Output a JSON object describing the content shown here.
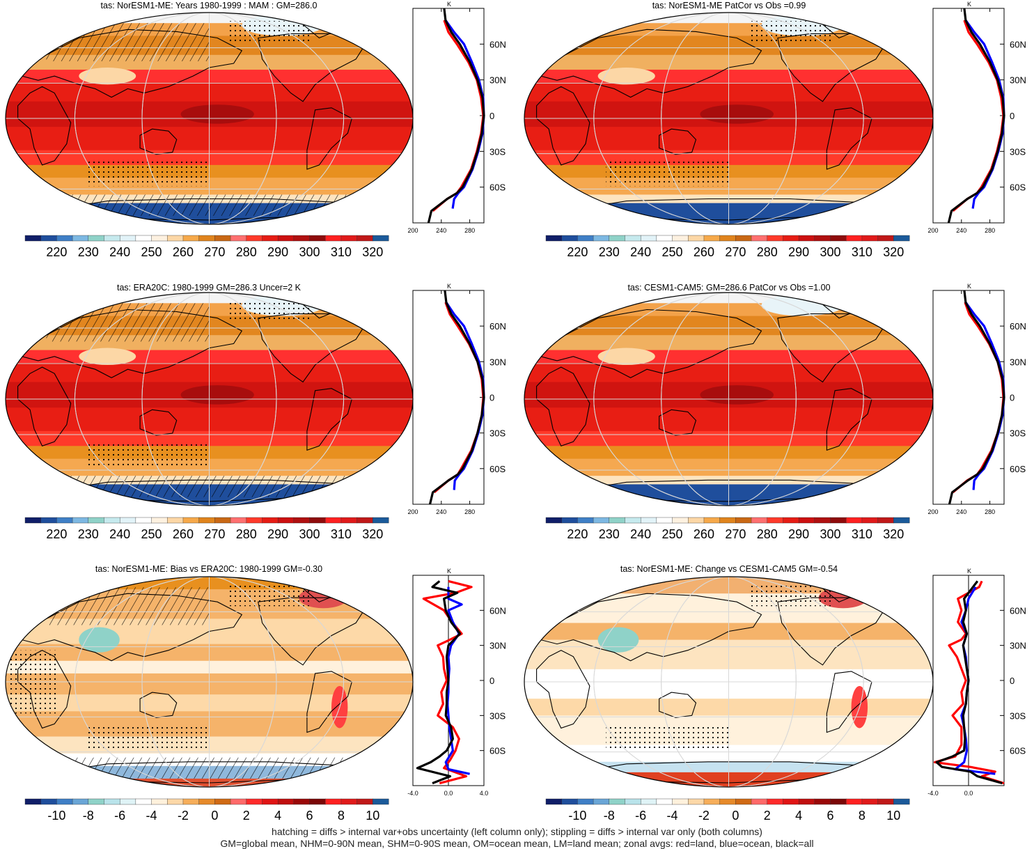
{
  "footer": {
    "line1": "hatching = diffs > internal var+obs uncertainty (left column only); stippling = diffs > internal var only (both columns)",
    "line2": "GM=global mean, NHM=0-90N mean, SHM=0-90S mean, OM=ocean mean, LM=land mean; zonal avgs: red=land, blue=ocean, black=all"
  },
  "colors": {
    "land": "#ff0000",
    "ocean": "#0000ff",
    "all": "#000000"
  },
  "profile_lat_labels": [
    "60N",
    "30N",
    "0",
    "30S",
    "60S"
  ],
  "profile_lat_values": [
    60,
    30,
    0,
    -30,
    -60
  ],
  "profile_units_label": "K",
  "colorbars": {
    "abs": {
      "labels": [
        "220",
        "230",
        "240",
        "250",
        "260",
        "270",
        "280",
        "290",
        "300",
        "310",
        "320"
      ],
      "colors": [
        "#101e68",
        "#1f4e9c",
        "#3f7fc6",
        "#7db8e2",
        "#8fd2c8",
        "#c6eaee",
        "#e2f3f8",
        "#ffffff",
        "#fdf1e0",
        "#fcd7a6",
        "#f6a94a",
        "#e0841d",
        "#c96814",
        "#ff7070",
        "#ff3a2a",
        "#e61c14",
        "#cc1010",
        "#b01010",
        "#8e0b0b",
        "#ff2020",
        "#e01a1a",
        "#c01818",
        "#1b5a9a"
      ]
    },
    "diff": {
      "labels": [
        "-10",
        "-8",
        "-6",
        "-4",
        "-2",
        "0",
        "2",
        "4",
        "6",
        "8",
        "10"
      ],
      "colors": [
        "#101e68",
        "#1f4e9c",
        "#3f7fc6",
        "#6aa6d6",
        "#8fd2c8",
        "#b9e3ea",
        "#dff3f6",
        "#ffffff",
        "#fff1dc",
        "#fcd8a8",
        "#f6ae5a",
        "#e68a2a",
        "#d06a14",
        "#ff6a6a",
        "#ff2a2a",
        "#e01414",
        "#c00e0e",
        "#9a0808",
        "#7a0606",
        "#ff2020",
        "#e01a1a",
        "#c01818",
        "#1b5a9a"
      ]
    }
  },
  "chart_data": [
    {
      "type": "map",
      "title": "tas: NorESM1-ME: Years 1980-1999 : MAM : GM=286.0",
      "colorbar": "abs",
      "scale": "abs",
      "hatch": true,
      "stipple": true,
      "profile": {
        "type": "line",
        "xlabel": "K",
        "xticks": [
          "200",
          "240",
          "280"
        ],
        "xlim": [
          200,
          300
        ],
        "ylim": [
          -90,
          90
        ],
        "series": [
          {
            "name": "land",
            "lat": [
              -80,
              -70,
              -65,
              -60,
              -45,
              -30,
              -15,
              0,
              15,
              30,
              45,
              60,
              70,
              80
            ],
            "values": [
              228,
              248,
              262,
              268,
              282,
              290,
              296,
              299,
              296,
              290,
              278,
              262,
              250,
              244
            ]
          },
          {
            "name": "ocean",
            "lat": [
              -78,
              -70,
              -65,
              -60,
              -45,
              -30,
              -15,
              0,
              15,
              30,
              45,
              60,
              70,
              80
            ],
            "values": [
              256,
              258,
              264,
              272,
              284,
              292,
              298,
              301,
              299,
              293,
              283,
              272,
              258,
              246
            ]
          },
          {
            "name": "all",
            "lat": [
              -90,
              -80,
              -70,
              -65,
              -60,
              -45,
              -30,
              -15,
              0,
              15,
              30,
              45,
              60,
              70,
              80,
              90
            ],
            "values": [
              222,
              226,
              248,
              262,
              270,
              283,
              291,
              297,
              300,
              298,
              291,
              280,
              266,
              254,
              246,
              244
            ]
          }
        ]
      }
    },
    {
      "type": "map",
      "title": "tas: NorESM1-ME PatCor vs Obs =0.99",
      "colorbar": "abs",
      "scale": "abs",
      "hatch": false,
      "stipple": true,
      "profile": {
        "type": "line",
        "xlabel": "K",
        "xticks": [
          "200",
          "240",
          "280"
        ],
        "xlim": [
          200,
          300
        ],
        "ylim": [
          -90,
          90
        ],
        "series": [
          {
            "name": "land",
            "lat": [
              -80,
              -70,
              -65,
              -60,
              -45,
              -30,
              -15,
              0,
              15,
              30,
              45,
              60,
              70,
              80
            ],
            "values": [
              228,
              248,
              262,
              268,
              282,
              290,
              296,
              299,
              296,
              290,
              278,
              262,
              250,
              244
            ]
          },
          {
            "name": "ocean",
            "lat": [
              -78,
              -70,
              -65,
              -60,
              -45,
              -30,
              -15,
              0,
              15,
              30,
              45,
              60,
              70,
              80
            ],
            "values": [
              256,
              258,
              264,
              272,
              284,
              292,
              298,
              301,
              299,
              293,
              283,
              272,
              258,
              246
            ]
          },
          {
            "name": "all",
            "lat": [
              -90,
              -80,
              -70,
              -65,
              -60,
              -45,
              -30,
              -15,
              0,
              15,
              30,
              45,
              60,
              70,
              80,
              90
            ],
            "values": [
              222,
              226,
              248,
              262,
              270,
              283,
              291,
              297,
              300,
              298,
              291,
              280,
              266,
              254,
              246,
              244
            ]
          }
        ]
      }
    },
    {
      "type": "map",
      "title": "tas: ERA20C: 1980-1999 GM=286.3 Uncer=2 K",
      "colorbar": "abs",
      "scale": "abs",
      "hatch": true,
      "stipple": true,
      "profile": {
        "type": "line",
        "xlabel": "K",
        "xticks": [
          "200",
          "240",
          "280"
        ],
        "xlim": [
          200,
          300
        ],
        "ylim": [
          -90,
          90
        ],
        "series": [
          {
            "name": "land",
            "lat": [
              -80,
              -70,
              -65,
              -60,
              -45,
              -30,
              -15,
              0,
              15,
              30,
              45,
              60,
              70,
              80
            ],
            "values": [
              230,
              250,
              263,
              268,
              282,
              291,
              297,
              299,
              297,
              291,
              279,
              263,
              252,
              246
            ]
          },
          {
            "name": "ocean",
            "lat": [
              -78,
              -70,
              -65,
              -60,
              -45,
              -30,
              -15,
              0,
              15,
              30,
              45,
              60,
              70,
              80
            ],
            "values": [
              258,
              259,
              265,
              272,
              284,
              292,
              298,
              301,
              299,
              293,
              283,
              272,
              258,
              247
            ]
          },
          {
            "name": "all",
            "lat": [
              -90,
              -80,
              -70,
              -65,
              -60,
              -45,
              -30,
              -15,
              0,
              15,
              30,
              45,
              60,
              70,
              80,
              90
            ],
            "values": [
              224,
              228,
              250,
              263,
              270,
              283,
              291,
              297,
              300,
              298,
              291,
              280,
              266,
              254,
              247,
              245
            ]
          }
        ]
      }
    },
    {
      "type": "map",
      "title": "tas: CESM1-CAM5: GM=286.6 PatCor vs Obs =1.00",
      "colorbar": "abs",
      "scale": "abs",
      "hatch": false,
      "stipple": false,
      "profile": {
        "type": "line",
        "xlabel": "K",
        "xticks": [
          "200",
          "240",
          "280"
        ],
        "xlim": [
          200,
          300
        ],
        "ylim": [
          -90,
          90
        ],
        "series": [
          {
            "name": "land",
            "lat": [
              -80,
              -70,
              -65,
              -60,
              -45,
              -30,
              -15,
              0,
              15,
              30,
              45,
              60,
              70,
              80
            ],
            "values": [
              228,
              248,
              262,
              268,
              282,
              291,
              297,
              299,
              297,
              291,
              279,
              263,
              251,
              245
            ]
          },
          {
            "name": "ocean",
            "lat": [
              -78,
              -70,
              -65,
              -60,
              -45,
              -30,
              -15,
              0,
              15,
              30,
              45,
              60,
              70,
              80
            ],
            "values": [
              257,
              258,
              264,
              272,
              284,
              292,
              298,
              301,
              299,
              293,
              283,
              272,
              258,
              246
            ]
          },
          {
            "name": "all",
            "lat": [
              -90,
              -80,
              -70,
              -65,
              -60,
              -45,
              -30,
              -15,
              0,
              15,
              30,
              45,
              60,
              70,
              80,
              90
            ],
            "values": [
              223,
              227,
              249,
              262,
              270,
              283,
              291,
              297,
              300,
              298,
              291,
              280,
              266,
              254,
              246,
              244
            ]
          }
        ]
      }
    },
    {
      "type": "map",
      "title": "tas: NorESM1-ME: Bias vs ERA20C: 1980-1999 GM=-0.30",
      "colorbar": "diff",
      "scale": "diff",
      "hatch": true,
      "stipple": true,
      "profile": {
        "type": "line",
        "xlabel": "K",
        "xticks": [
          "-4.0",
          "0.0",
          "4.0"
        ],
        "xlim": [
          -4,
          4
        ],
        "ylim": [
          -90,
          90
        ],
        "series": [
          {
            "name": "land",
            "lat": [
              -88,
              -82,
              -75,
              -68,
              -60,
              -50,
              -40,
              -30,
              -20,
              -10,
              0,
              10,
              20,
              30,
              35,
              40,
              50,
              60,
              70,
              75,
              80,
              85
            ],
            "values": [
              -1.0,
              2.0,
              -0.5,
              0.2,
              0.8,
              1.2,
              0.5,
              -1.2,
              -0.6,
              -0.8,
              -0.2,
              -0.5,
              -0.6,
              -1.2,
              0.2,
              1.5,
              0.4,
              -0.5,
              -2.8,
              0.8,
              2.6,
              0.0
            ]
          },
          {
            "name": "ocean",
            "lat": [
              -80,
              -76,
              -70,
              -60,
              -50,
              -40,
              -30,
              -20,
              -10,
              0,
              10,
              20,
              30,
              40,
              50,
              60,
              65,
              70,
              80
            ],
            "values": [
              2.4,
              0.0,
              -0.3,
              0.5,
              0.3,
              0.1,
              0.0,
              -0.1,
              0.0,
              0.0,
              0.1,
              0.0,
              0.3,
              1.2,
              0.5,
              0.0,
              1.5,
              0.0,
              0.0
            ]
          },
          {
            "name": "all",
            "lat": [
              -88,
              -82,
              -75,
              -70,
              -65,
              -60,
              -50,
              -40,
              -30,
              -20,
              -10,
              0,
              10,
              20,
              30,
              40,
              50,
              60,
              70,
              75,
              80,
              85
            ],
            "values": [
              -1.8,
              0.2,
              -3.5,
              -2.0,
              -1.0,
              -0.2,
              0.5,
              0.3,
              -0.3,
              -0.2,
              -0.2,
              0.0,
              -0.1,
              -0.2,
              0.0,
              1.3,
              0.3,
              -0.3,
              -0.5,
              1.0,
              -1.8,
              -1.0
            ]
          }
        ]
      }
    },
    {
      "type": "map",
      "title": "tas: NorESM1-ME: Change vs CESM1-CAM5 GM=-0.54",
      "colorbar": "diff",
      "scale": "change",
      "hatch": false,
      "stipple": true,
      "profile": {
        "type": "line",
        "xlabel": "K",
        "xticks": [
          "-4.0",
          "0.0"
        ],
        "xlim": [
          -4,
          4
        ],
        "ylim": [
          -90,
          90
        ],
        "series": [
          {
            "name": "land",
            "lat": [
              -88,
              -82,
              -78,
              -74,
              -70,
              -65,
              -55,
              -40,
              -30,
              -20,
              -10,
              0,
              10,
              20,
              30,
              35,
              40,
              50,
              60,
              70,
              80,
              85
            ],
            "values": [
              4.0,
              1.5,
              3.0,
              0.2,
              -3.8,
              -1.5,
              -0.8,
              -0.8,
              -1.8,
              -0.6,
              -0.8,
              -0.3,
              -0.8,
              -1.3,
              -2.2,
              -0.8,
              -0.3,
              -1.2,
              -0.8,
              -1.2,
              1.2,
              1.5
            ]
          },
          {
            "name": "ocean",
            "lat": [
              -80,
              -76,
              -70,
              -60,
              -50,
              -40,
              -30,
              -20,
              -10,
              0,
              10,
              20,
              30,
              40,
              50,
              60,
              70,
              80
            ],
            "values": [
              3.0,
              -1.5,
              -0.5,
              -0.2,
              -0.3,
              -0.5,
              -0.8,
              -0.3,
              -0.2,
              0.0,
              -0.2,
              -0.3,
              -0.6,
              -0.2,
              -0.8,
              -0.3,
              0.0,
              0.8
            ]
          },
          {
            "name": "all",
            "lat": [
              -88,
              -82,
              -78,
              -74,
              -70,
              -65,
              -60,
              -50,
              -40,
              -30,
              -20,
              -10,
              0,
              10,
              20,
              30,
              40,
              50,
              60,
              70,
              80,
              85
            ],
            "values": [
              3.8,
              1.0,
              0.2,
              -3.0,
              -3.6,
              -1.8,
              -0.5,
              -0.4,
              -0.5,
              -0.6,
              -0.3,
              -0.2,
              0.0,
              -0.2,
              -0.4,
              -0.6,
              -0.2,
              -0.6,
              -0.3,
              -0.5,
              0.5,
              1.0
            ]
          }
        ]
      }
    }
  ]
}
